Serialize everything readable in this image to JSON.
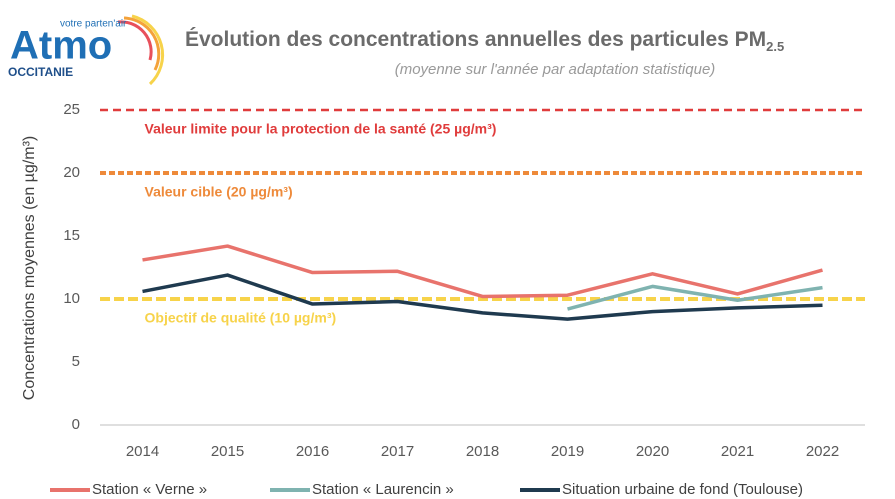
{
  "logo": {
    "name": "Atmo",
    "tagline": "votre parten'air",
    "region": "OCCITANIE"
  },
  "chart_data": {
    "type": "line",
    "title": "Évolution des concentrations annuelles des particules PM",
    "title_subscript": "2.5",
    "subtitle": "(moyenne sur l'année par adaptation statistique)",
    "y_label": "Concentrations moyennes (en µg/m³)",
    "categories": [
      "2014",
      "2015",
      "2016",
      "2017",
      "2018",
      "2019",
      "2020",
      "2021",
      "2022"
    ],
    "series": [
      {
        "name": "Station « Verne »",
        "color": "#e8736c",
        "values": [
          13.1,
          14.2,
          12.1,
          12.2,
          10.2,
          10.3,
          12.0,
          10.4,
          12.3
        ]
      },
      {
        "name": "Station « Laurencin »",
        "color": "#7fb3b0",
        "values": [
          null,
          null,
          null,
          null,
          null,
          9.2,
          11.0,
          9.9,
          10.9
        ]
      },
      {
        "name": "Situation urbaine de fond (Toulouse)",
        "color": "#1f3a4f",
        "values": [
          10.6,
          11.9,
          9.6,
          9.8,
          8.9,
          8.4,
          9.0,
          9.3,
          9.5
        ]
      }
    ],
    "reference_lines": [
      {
        "value": 25,
        "label": "Valeur limite pour la protection de la santé (25 µg/m³)",
        "color": "#e03c3c"
      },
      {
        "value": 20,
        "label": "Valeur cible (20 µg/m³)",
        "color": "#ee8a3a"
      },
      {
        "value": 10,
        "label": "Objectif de qualité (10 µg/m³)",
        "color": "#f7d34a"
      }
    ],
    "ylim": [
      0,
      25
    ],
    "yticks": [
      0,
      5,
      10,
      15,
      20,
      25
    ],
    "grid": false
  }
}
